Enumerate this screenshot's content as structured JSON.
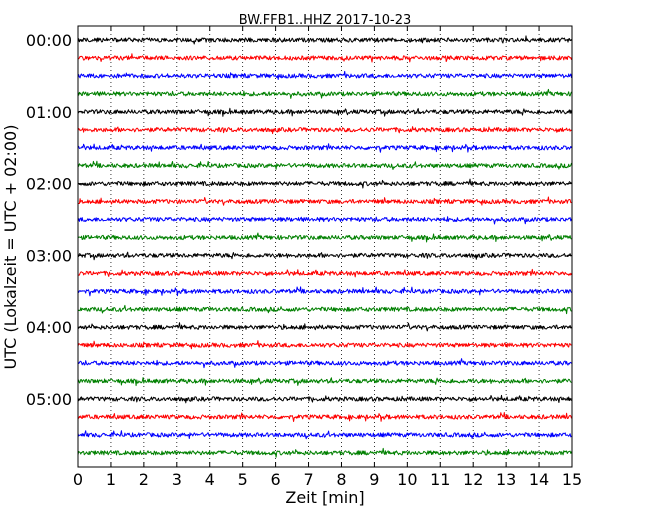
{
  "chart_data": {
    "type": "line",
    "title": "BW.FFB1..HHZ 2017-10-23",
    "xlabel": "Zeit  [min]",
    "ylabel": "UTC (Lokalzeit = UTC + 02:00)",
    "xlim": [
      0,
      15
    ],
    "x_ticks": [
      0,
      1,
      2,
      3,
      4,
      5,
      6,
      7,
      8,
      9,
      10,
      11,
      12,
      13,
      14,
      15
    ],
    "x_tick_labels": [
      "0",
      "1",
      "2",
      "3",
      "4",
      "5",
      "6",
      "7",
      "8",
      "9",
      "10",
      "11",
      "12",
      "13",
      "14",
      "15"
    ],
    "y_ticks": [
      "00:00",
      "01:00",
      "02:00",
      "03:00",
      "04:00",
      "05:00"
    ],
    "trace_minutes": 15,
    "trace_count": 24,
    "trace_colors": [
      "#000000",
      "#ff0000",
      "#0000ff",
      "#008000"
    ],
    "vertical_grid": "dotted",
    "legend": "none",
    "series": [
      {
        "start": "00:00",
        "color": "#000000"
      },
      {
        "start": "00:15",
        "color": "#ff0000"
      },
      {
        "start": "00:30",
        "color": "#0000ff"
      },
      {
        "start": "00:45",
        "color": "#008000"
      },
      {
        "start": "01:00",
        "color": "#000000"
      },
      {
        "start": "01:15",
        "color": "#ff0000"
      },
      {
        "start": "01:30",
        "color": "#0000ff"
      },
      {
        "start": "01:45",
        "color": "#008000"
      },
      {
        "start": "02:00",
        "color": "#000000"
      },
      {
        "start": "02:15",
        "color": "#ff0000"
      },
      {
        "start": "02:30",
        "color": "#0000ff"
      },
      {
        "start": "02:45",
        "color": "#008000"
      },
      {
        "start": "03:00",
        "color": "#000000"
      },
      {
        "start": "03:15",
        "color": "#ff0000"
      },
      {
        "start": "03:30",
        "color": "#0000ff"
      },
      {
        "start": "03:45",
        "color": "#008000"
      },
      {
        "start": "04:00",
        "color": "#000000"
      },
      {
        "start": "04:15",
        "color": "#ff0000"
      },
      {
        "start": "04:30",
        "color": "#0000ff"
      },
      {
        "start": "04:45",
        "color": "#008000"
      },
      {
        "start": "05:00",
        "color": "#000000"
      },
      {
        "start": "05:15",
        "color": "#ff0000"
      },
      {
        "start": "05:30",
        "color": "#0000ff"
      },
      {
        "start": "05:45",
        "color": "#008000"
      }
    ]
  }
}
